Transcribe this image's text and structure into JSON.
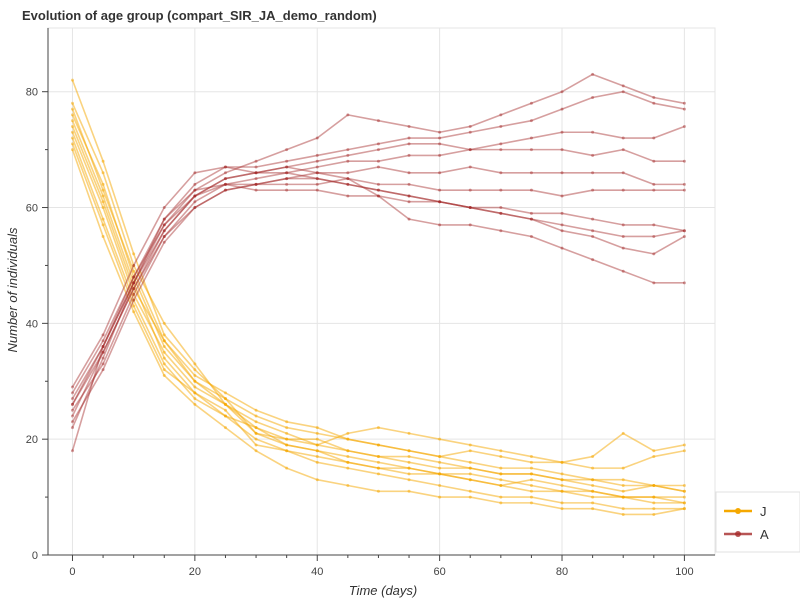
{
  "chart_data": {
    "type": "line",
    "title": "Evolution of age group (compart_SIR_JA_demo_random)",
    "xlabel": "Time (days)",
    "ylabel": "Number of individuals",
    "xlim": [
      -4,
      105
    ],
    "ylim": [
      0,
      91
    ],
    "x_ticks": [
      0,
      20,
      40,
      60,
      80,
      100
    ],
    "y_ticks": [
      0,
      20,
      40,
      60,
      80
    ],
    "grid": true,
    "legend_position": "bottom-right",
    "legend": [
      {
        "label": "J",
        "color": "#f5a800"
      },
      {
        "label": "A",
        "color": "#a52a2a"
      }
    ],
    "x": [
      0,
      5,
      10,
      15,
      20,
      25,
      30,
      35,
      40,
      45,
      50,
      55,
      60,
      65,
      70,
      75,
      80,
      85,
      90,
      95,
      100
    ],
    "groups": [
      {
        "name": "J",
        "color": "#f5a800",
        "runs": [
          [
            82,
            68,
            52,
            38,
            32,
            27,
            21,
            20,
            20,
            18,
            17,
            17,
            16,
            15,
            14,
            14,
            13,
            12,
            11,
            12,
            12
          ],
          [
            78,
            66,
            50,
            40,
            33,
            26,
            22,
            19,
            18,
            16,
            15,
            14,
            14,
            13,
            12,
            13,
            12,
            11,
            10,
            10,
            10
          ],
          [
            76,
            64,
            48,
            36,
            30,
            27,
            24,
            22,
            21,
            20,
            19,
            18,
            17,
            16,
            15,
            15,
            14,
            13,
            13,
            12,
            11
          ],
          [
            75,
            62,
            47,
            34,
            28,
            25,
            19,
            18,
            16,
            15,
            14,
            13,
            12,
            11,
            10,
            10,
            9,
            9,
            8,
            8,
            8
          ],
          [
            73,
            60,
            45,
            35,
            29,
            26,
            21,
            19,
            18,
            17,
            16,
            15,
            14,
            14,
            13,
            12,
            11,
            11,
            10,
            10,
            9
          ],
          [
            72,
            58,
            44,
            33,
            27,
            24,
            20,
            18,
            17,
            16,
            15,
            15,
            14,
            13,
            12,
            11,
            11,
            10,
            10,
            9,
            9
          ],
          [
            71,
            57,
            43,
            32,
            28,
            24,
            22,
            20,
            19,
            21,
            22,
            21,
            20,
            19,
            18,
            17,
            16,
            17,
            21,
            18,
            19
          ],
          [
            74,
            61,
            46,
            37,
            31,
            28,
            25,
            23,
            22,
            20,
            19,
            18,
            17,
            18,
            17,
            16,
            16,
            15,
            15,
            17,
            18
          ],
          [
            70,
            55,
            42,
            31,
            26,
            22,
            18,
            15,
            13,
            12,
            11,
            11,
            10,
            10,
            9,
            9,
            8,
            8,
            7,
            7,
            8
          ],
          [
            77,
            63,
            49,
            37,
            30,
            26,
            23,
            21,
            19,
            18,
            17,
            16,
            15,
            15,
            14,
            14,
            13,
            13,
            12,
            12,
            11
          ]
        ]
      },
      {
        "name": "A",
        "color": "#a52a2a",
        "runs": [
          [
            18,
            36,
            48,
            57,
            63,
            66,
            68,
            70,
            72,
            76,
            75,
            74,
            73,
            74,
            76,
            78,
            80,
            83,
            81,
            79,
            78
          ],
          [
            22,
            34,
            47,
            58,
            64,
            67,
            67,
            68,
            69,
            70,
            71,
            72,
            72,
            73,
            74,
            75,
            77,
            79,
            80,
            78,
            77
          ],
          [
            24,
            35,
            46,
            56,
            62,
            65,
            66,
            67,
            68,
            69,
            70,
            71,
            71,
            70,
            71,
            72,
            73,
            73,
            72,
            72,
            74
          ],
          [
            25,
            33,
            45,
            55,
            61,
            64,
            65,
            66,
            67,
            68,
            68,
            69,
            69,
            70,
            70,
            70,
            70,
            69,
            70,
            68,
            68
          ],
          [
            26,
            35,
            46,
            55,
            60,
            63,
            64,
            65,
            66,
            66,
            67,
            66,
            66,
            67,
            66,
            66,
            66,
            66,
            66,
            64,
            64
          ],
          [
            27,
            36,
            47,
            56,
            62,
            64,
            64,
            64,
            64,
            65,
            64,
            64,
            63,
            63,
            63,
            63,
            62,
            63,
            63,
            63,
            63
          ],
          [
            28,
            37,
            48,
            58,
            63,
            64,
            63,
            63,
            63,
            62,
            62,
            61,
            61,
            60,
            60,
            59,
            59,
            58,
            57,
            57,
            56
          ],
          [
            29,
            38,
            50,
            60,
            66,
            67,
            66,
            66,
            65,
            64,
            63,
            62,
            61,
            60,
            59,
            58,
            57,
            56,
            55,
            55,
            56
          ],
          [
            23,
            32,
            44,
            54,
            60,
            63,
            64,
            65,
            65,
            64,
            63,
            62,
            61,
            60,
            59,
            58,
            56,
            55,
            53,
            52,
            55
          ],
          [
            26,
            36,
            47,
            57,
            62,
            65,
            66,
            67,
            66,
            65,
            62,
            58,
            57,
            57,
            56,
            55,
            53,
            51,
            49,
            47,
            47
          ]
        ]
      }
    ]
  }
}
